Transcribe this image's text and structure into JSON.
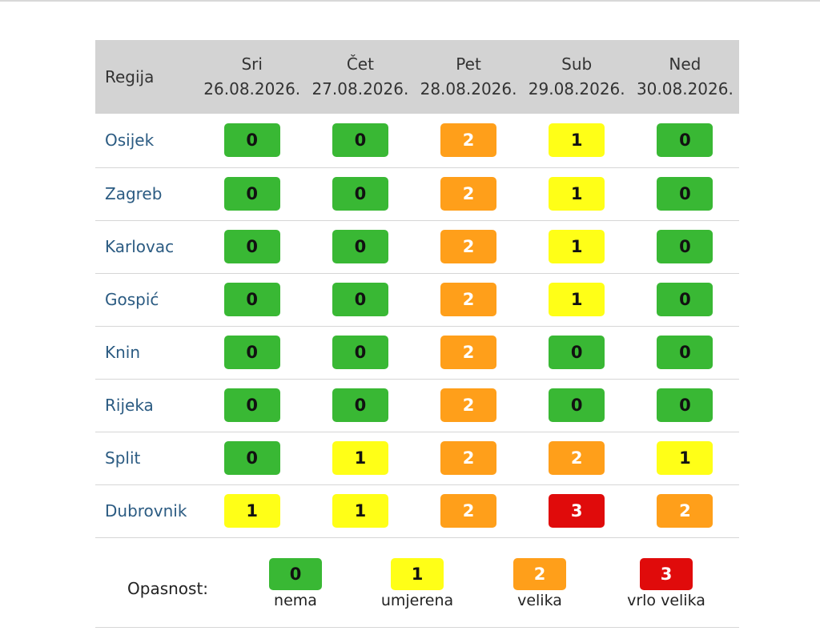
{
  "header": {
    "region_label": "Regija",
    "days": [
      {
        "name": "Sri",
        "date": "26.08.2026."
      },
      {
        "name": "Čet",
        "date": "27.08.2026."
      },
      {
        "name": "Pet",
        "date": "28.08.2026."
      },
      {
        "name": "Sub",
        "date": "29.08.2026."
      },
      {
        "name": "Ned",
        "date": "30.08.2026."
      }
    ]
  },
  "rows": [
    {
      "region": "Osijek",
      "levels": [
        "0",
        "0",
        "2",
        "1",
        "0"
      ]
    },
    {
      "region": "Zagreb",
      "levels": [
        "0",
        "0",
        "2",
        "1",
        "0"
      ]
    },
    {
      "region": "Karlovac",
      "levels": [
        "0",
        "0",
        "2",
        "1",
        "0"
      ]
    },
    {
      "region": "Gospić",
      "levels": [
        "0",
        "0",
        "2",
        "1",
        "0"
      ]
    },
    {
      "region": "Knin",
      "levels": [
        "0",
        "0",
        "2",
        "0",
        "0"
      ]
    },
    {
      "region": "Rijeka",
      "levels": [
        "0",
        "0",
        "2",
        "0",
        "0"
      ]
    },
    {
      "region": "Split",
      "levels": [
        "0",
        "1",
        "2",
        "2",
        "1"
      ]
    },
    {
      "region": "Dubrovnik",
      "levels": [
        "1",
        "1",
        "2",
        "3",
        "2"
      ]
    }
  ],
  "legend": {
    "label": "Opasnost:",
    "items": [
      {
        "level": "0",
        "text": "nema"
      },
      {
        "level": "1",
        "text": "umjerena"
      },
      {
        "level": "2",
        "text": "velika"
      },
      {
        "level": "3",
        "text": "vrlo velika"
      }
    ]
  },
  "colors": {
    "level_0": "#39b834",
    "level_1": "#ffff17",
    "level_2": "#ff9f1a",
    "level_3": "#e00b0b",
    "header_bg": "#d3d3d3",
    "region_text": "#2b5b82"
  }
}
